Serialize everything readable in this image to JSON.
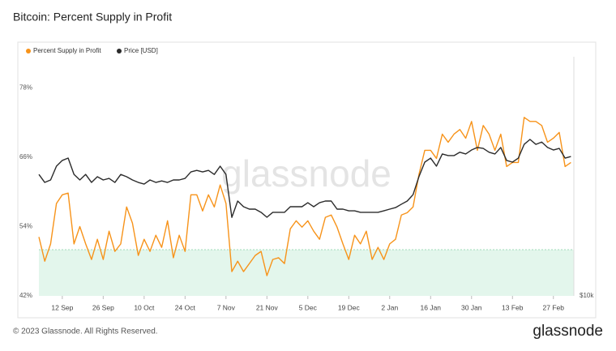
{
  "chart_data": {
    "type": "line",
    "title": "Bitcoin: Percent Supply in Profit",
    "watermark": "glassnode",
    "x": [
      0,
      2,
      4,
      6,
      8,
      10,
      12,
      14,
      16,
      18,
      20,
      22,
      24,
      26,
      28,
      30,
      32,
      34,
      36,
      38,
      40,
      42,
      44,
      46,
      48,
      50,
      52,
      54,
      56,
      58,
      60,
      62,
      64,
      66,
      68,
      70,
      72,
      74,
      76,
      78,
      80,
      82,
      84,
      86,
      88,
      90,
      92,
      94,
      96,
      98,
      100,
      102,
      104,
      106,
      108,
      110,
      112,
      114,
      116,
      118,
      120,
      122,
      124,
      126,
      128,
      130,
      132,
      134,
      136,
      138,
      140,
      142,
      144,
      146,
      148,
      150,
      152,
      154,
      156,
      158,
      160,
      162,
      164,
      166,
      168,
      170,
      172,
      174,
      176,
      178,
      180,
      182
    ],
    "xlim": [
      0,
      183
    ],
    "xticks": [
      {
        "value": 8,
        "label": "12 Sep"
      },
      {
        "value": 22,
        "label": "26 Sep"
      },
      {
        "value": 36,
        "label": "10 Oct"
      },
      {
        "value": 50,
        "label": "24 Oct"
      },
      {
        "value": 64,
        "label": "7 Nov"
      },
      {
        "value": 78,
        "label": "21 Nov"
      },
      {
        "value": 92,
        "label": "5 Dec"
      },
      {
        "value": 106,
        "label": "19 Dec"
      },
      {
        "value": 120,
        "label": "2 Jan"
      },
      {
        "value": 134,
        "label": "16 Jan"
      },
      {
        "value": 148,
        "label": "30 Jan"
      },
      {
        "value": 162,
        "label": "13 Feb"
      },
      {
        "value": 176,
        "label": "27 Feb"
      }
    ],
    "ylim": [
      42,
      83.4
    ],
    "yticks": [
      {
        "value": 42,
        "label": "42%"
      },
      {
        "value": 54,
        "label": "54%"
      },
      {
        "value": 66,
        "label": "66%"
      },
      {
        "value": 78,
        "label": "78%"
      }
    ],
    "y2lim": [
      10000,
      38000
    ],
    "y2scale": "log",
    "y2ticks": [
      {
        "value": 10000,
        "label": "$10k"
      }
    ],
    "shade_below": 50,
    "shade_color": "#e3f6ec",
    "series": [
      {
        "name": "Percent Supply in Profit",
        "color": "#f7931a",
        "values": [
          52.2,
          48,
          51,
          58,
          59.5,
          59.8,
          51,
          54,
          51,
          48.3,
          51.8,
          48.3,
          53.2,
          49.7,
          51,
          57.4,
          54.6,
          49,
          51.8,
          49.7,
          52.5,
          50.4,
          55,
          48.6,
          52.5,
          49.7,
          59.5,
          59.5,
          56.7,
          59.5,
          57.4,
          61.2,
          58,
          46.2,
          48,
          46.2,
          47.6,
          49,
          49.7,
          45.5,
          48.3,
          48.6,
          47.6,
          53.6,
          55,
          53.9,
          55,
          53.2,
          51.8,
          55.6,
          56,
          53.9,
          51,
          48.3,
          52.5,
          51,
          53.2,
          48.3,
          50.4,
          48.3,
          51,
          51.8,
          56,
          56.4,
          57.4,
          63,
          67.2,
          67.2,
          65.8,
          70,
          68.6,
          70,
          70.8,
          69.3,
          72.2,
          67.2,
          71.5,
          70,
          67.2,
          70,
          64.4,
          65.1,
          65.1,
          72.9,
          72.2,
          72.2,
          71.5,
          68.6,
          69.3,
          70.3,
          64.4,
          65.1
        ]
      },
      {
        "name": "Price [USD]",
        "color": "#2b2b2b",
        "axis": "y2",
        "values": [
          19700,
          18840,
          19100,
          20630,
          21300,
          21580,
          19700,
          19100,
          19700,
          18840,
          19450,
          19100,
          19270,
          18840,
          19700,
          19450,
          19100,
          18840,
          18670,
          19100,
          18840,
          19000,
          18840,
          19100,
          19100,
          19270,
          19980,
          20150,
          19980,
          20150,
          19700,
          20630,
          19700,
          15500,
          16980,
          16450,
          16230,
          16230,
          15940,
          15510,
          15940,
          15940,
          15940,
          16450,
          16450,
          16450,
          16820,
          16450,
          16820,
          16980,
          16980,
          16230,
          16230,
          16080,
          16080,
          15940,
          15940,
          15940,
          15940,
          16080,
          16230,
          16370,
          16680,
          16980,
          17600,
          19450,
          21100,
          21580,
          20630,
          22080,
          21880,
          21880,
          22300,
          22080,
          22580,
          22900,
          22780,
          22300,
          22080,
          22900,
          21300,
          21100,
          21580,
          23300,
          23950,
          23300,
          23600,
          22900,
          22580,
          22780,
          21580,
          21770
        ]
      }
    ]
  },
  "footer": {
    "copyright": "© 2023 Glassnode. All Rights Reserved.",
    "logo": "glassnode"
  }
}
